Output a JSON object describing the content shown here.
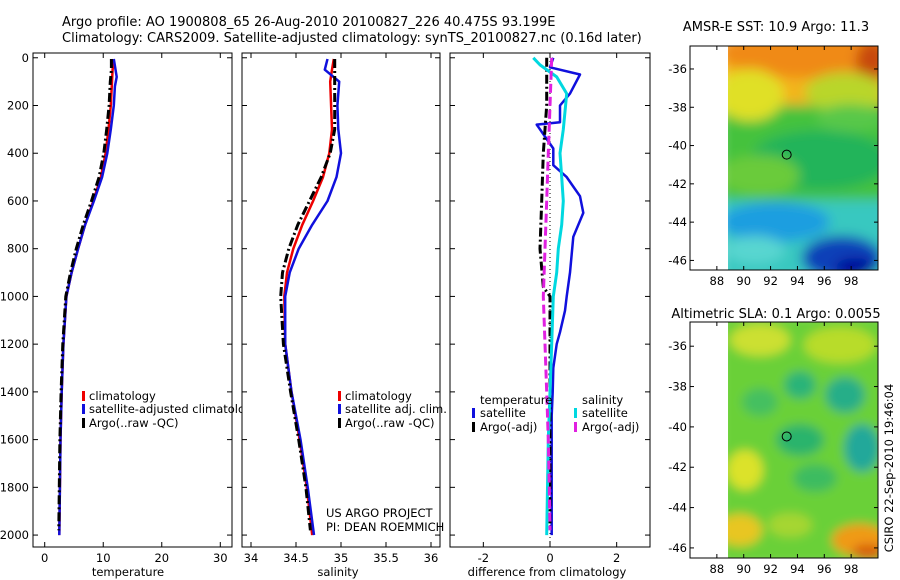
{
  "header": {
    "line1": "Argo profile: AO 1900808_65 26-Aug-2010 20100827_226 40.475S 93.199E",
    "line2": "Climatology: CARS2009. Satellite-adjusted climatology: synTS_20100827.nc (0.16d later)"
  },
  "side_stamp": "CSIRO 22-Sep-2010 19:46:04",
  "project_note": [
    "US ARGO PROJECT",
    "PI: DEAN ROEMMICH"
  ],
  "colors": {
    "clim": "#ee0000",
    "sat": "#1010dd",
    "argo": "#000000",
    "sat_sal": "#00d8e0",
    "argo_sal": "#e020e0"
  },
  "chart_data": [
    {
      "type": "line",
      "xlabel": "temperature",
      "xlim": [
        -2,
        32
      ],
      "ylim": [
        2050,
        -20
      ],
      "xticks": [
        "0",
        "10",
        "20",
        "30"
      ],
      "yticks": [
        "0",
        "200",
        "400",
        "600",
        "800",
        "1000",
        "1200",
        "1400",
        "1600",
        "1800",
        "2000"
      ],
      "legend": [
        "climatology",
        "satellite-adjusted climatology",
        "Argo(..raw -QC)"
      ],
      "series": [
        {
          "name": "climatology",
          "style": "clim",
          "x": [
            11.8,
            11.6,
            11.5,
            11.3,
            10.9,
            10.4,
            9.6,
            8.3,
            6.9,
            5.7,
            4.6,
            3.7,
            3.2,
            2.9,
            2.7,
            2.6,
            2.5
          ],
          "y": [
            5,
            50,
            100,
            200,
            300,
            400,
            500,
            600,
            700,
            800,
            900,
            1000,
            1200,
            1400,
            1600,
            1800,
            2000
          ]
        },
        {
          "name": "satellite-adjusted climatology",
          "style": "sat",
          "x": [
            11.8,
            12.3,
            12.0,
            11.8,
            11.3,
            10.7,
            9.8,
            8.4,
            6.9,
            5.7,
            4.6,
            3.7,
            3.2,
            2.9,
            2.7,
            2.6,
            2.5
          ],
          "y": [
            5,
            80,
            120,
            200,
            300,
            400,
            500,
            600,
            700,
            800,
            900,
            1000,
            1200,
            1400,
            1600,
            1800,
            2000
          ]
        },
        {
          "name": "Argo(..raw -QC)",
          "style": "argo",
          "x": [
            11.4,
            11.4,
            11.2,
            11.0,
            10.6,
            10.1,
            9.3,
            8.0,
            6.6,
            5.4,
            4.4,
            3.6,
            3.1,
            2.8,
            2.6,
            2.5,
            2.4
          ],
          "y": [
            5,
            50,
            100,
            200,
            300,
            400,
            500,
            600,
            700,
            800,
            900,
            1000,
            1200,
            1400,
            1600,
            1800,
            1980
          ]
        }
      ]
    },
    {
      "type": "line",
      "xlabel": "salinity",
      "xlim": [
        33.9,
        36.1
      ],
      "ylim": [
        2050,
        -20
      ],
      "xticks": [
        "34",
        "34.5",
        "35",
        "35.5",
        "36"
      ],
      "legend": [
        "climatology",
        "satellite adj. clim.",
        "Argo(..raw -QC)"
      ],
      "series": [
        {
          "name": "climatology",
          "style": "clim",
          "x": [
            34.92,
            34.9,
            34.88,
            34.89,
            34.9,
            34.87,
            34.8,
            34.69,
            34.57,
            34.47,
            34.4,
            34.37,
            34.38,
            34.45,
            34.54,
            34.62,
            34.68
          ],
          "y": [
            5,
            50,
            100,
            200,
            300,
            400,
            500,
            600,
            700,
            800,
            900,
            1000,
            1200,
            1400,
            1600,
            1800,
            2000
          ]
        },
        {
          "name": "satellite adj. clim.",
          "style": "sat",
          "x": [
            34.85,
            34.82,
            34.98,
            34.96,
            34.97,
            35.0,
            34.95,
            34.85,
            34.68,
            34.53,
            34.43,
            34.38,
            34.38,
            34.45,
            34.55,
            34.63,
            34.7
          ],
          "y": [
            5,
            50,
            100,
            200,
            300,
            400,
            500,
            600,
            700,
            800,
            900,
            1000,
            1200,
            1400,
            1600,
            1800,
            2000
          ]
        },
        {
          "name": "Argo(..raw -QC)",
          "style": "argo",
          "x": [
            34.93,
            34.93,
            34.93,
            34.93,
            34.93,
            34.88,
            34.78,
            34.65,
            34.52,
            34.42,
            34.35,
            34.33,
            34.36,
            34.44,
            34.53,
            34.61,
            34.66
          ],
          "y": [
            5,
            50,
            100,
            200,
            300,
            400,
            500,
            600,
            700,
            800,
            900,
            1000,
            1200,
            1400,
            1600,
            1800,
            1980
          ]
        }
      ]
    },
    {
      "type": "line",
      "xlabel": "difference from climatology",
      "xlim": [
        -3,
        3
      ],
      "ylim": [
        2050,
        -20
      ],
      "xticks": [
        "-2",
        "0",
        "2"
      ],
      "legend_titles": [
        "temperature",
        "salinity"
      ],
      "legend": [
        "satellite",
        "Argo(-adj)",
        "satellite",
        "Argo(-adj)"
      ],
      "series": [
        {
          "name": "satellite",
          "group": "temperature",
          "style": "sat",
          "x": [
            0.1,
            0.0,
            0.9,
            0.6,
            0.3,
            0.3,
            -0.4,
            -0.2,
            0.1,
            0.1,
            0.5,
            0.7,
            0.9,
            1.0,
            0.7,
            0.6,
            0.5,
            0.45,
            0.3,
            0.2,
            0.1,
            0.08,
            0.05,
            0.05,
            0.05,
            0.05
          ],
          "y": [
            0,
            40,
            70,
            150,
            200,
            270,
            280,
            320,
            380,
            450,
            500,
            540,
            580,
            650,
            750,
            900,
            1000,
            1060,
            1150,
            1200,
            1300,
            1400,
            1500,
            1600,
            1800,
            2000
          ]
        },
        {
          "name": "Argo(-adj)",
          "group": "temperature",
          "style": "argo",
          "x": [
            -0.1,
            -0.1,
            -0.1,
            -0.2,
            -0.25,
            -0.3,
            -0.2,
            0.0,
            0.0,
            0.0,
            0.0
          ],
          "y": [
            0,
            100,
            200,
            400,
            600,
            800,
            960,
            1000,
            1100,
            1200,
            1980
          ]
        },
        {
          "name": "satellite",
          "group": "salinity",
          "style": "sat_sal",
          "x": [
            -0.5,
            -0.3,
            0.2,
            0.5,
            0.4,
            0.3,
            0.35,
            0.4,
            0.35,
            0.25,
            0.2,
            0.1,
            0.05,
            0.0,
            -0.05,
            -0.1
          ],
          "y": [
            0,
            30,
            80,
            150,
            300,
            400,
            500,
            600,
            700,
            800,
            900,
            1000,
            1200,
            1400,
            1600,
            2000
          ]
        },
        {
          "name": "Argo(-adj)",
          "group": "salinity",
          "style": "argo_sal",
          "x": [
            0.05,
            0.0,
            -0.05,
            -0.1,
            -0.15,
            -0.2,
            -0.15,
            -0.1,
            -0.05,
            -0.02,
            0.0
          ],
          "y": [
            0,
            200,
            400,
            600,
            800,
            1000,
            1200,
            1400,
            1600,
            1800,
            1980
          ]
        }
      ]
    },
    {
      "type": "heatmap",
      "title": "AMSR-E SST: 10.9  Argo: 11.3",
      "xlim": [
        86,
        100
      ],
      "ylim": [
        -46.5,
        -34.8
      ],
      "xticks": [
        "88",
        "90",
        "92",
        "94",
        "96",
        "98"
      ],
      "yticks": [
        "-36",
        "-38",
        "-40",
        "-42",
        "-44",
        "-46"
      ],
      "data_xrange": [
        90,
        100
      ],
      "marker": [
        93.2,
        -40.475
      ]
    },
    {
      "type": "heatmap",
      "title": "Altimetric SLA: 0.1  Argo: 0.0055",
      "xlim": [
        86,
        100
      ],
      "ylim": [
        -46.5,
        -34.8
      ],
      "xticks": [
        "88",
        "90",
        "92",
        "94",
        "96",
        "98"
      ],
      "yticks": [
        "-36",
        "-38",
        "-40",
        "-42",
        "-44",
        "-46"
      ],
      "data_xrange": [
        90,
        100
      ],
      "marker": [
        93.2,
        -40.475
      ]
    }
  ]
}
